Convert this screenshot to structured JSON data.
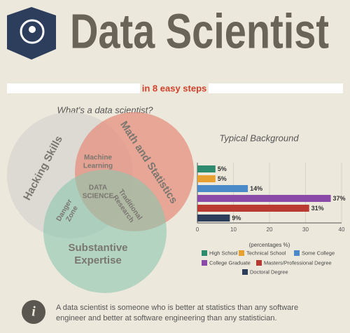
{
  "header": {
    "title": "Data Scientist",
    "subtitle": "in 8 easy steps"
  },
  "venn": {
    "title": "What's a data scientist?",
    "circles": [
      [
        "Hacking Skills"
      ],
      [
        "Math and Statistics"
      ],
      [
        "Substantive",
        "Expertise"
      ]
    ],
    "overlaps": [
      [
        "Machine",
        "Learning"
      ],
      [
        "Danger",
        "Zone"
      ],
      [
        "Traditional",
        "Research"
      ],
      [
        "DATA",
        "SCIENCE"
      ]
    ]
  },
  "chart_data": {
    "type": "bar",
    "orientation": "horizontal",
    "title": "Typical Background",
    "categories": [
      "High School",
      "Technical School",
      "Some College",
      "College Graduate",
      "Masters/Professional Degree",
      "Doctoral Degree"
    ],
    "values": [
      5,
      5,
      14,
      37,
      31,
      9
    ],
    "value_labels": [
      "5%",
      "5%",
      "14%",
      "37%",
      "31%",
      "9%"
    ],
    "colors": [
      "#2e8b6e",
      "#e8a030",
      "#4a8ac8",
      "#8a4aa8",
      "#b83a30",
      "#2c3e5c"
    ],
    "xlabel": "(percentages %)",
    "xlim": [
      0,
      40
    ],
    "xticks": [
      0,
      10,
      20,
      30,
      40
    ]
  },
  "footer": {
    "quote_lines": [
      "A data scientist is someone who is better at statistics than any software",
      "engineer and better at software engineering than any statistician."
    ]
  }
}
